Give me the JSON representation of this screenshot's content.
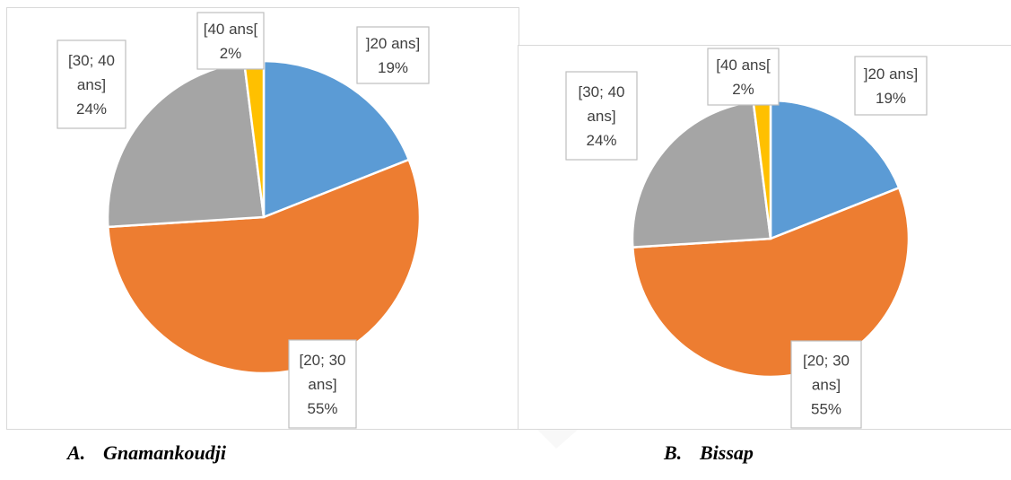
{
  "chart_data": [
    {
      "type": "pie",
      "caption_letter": "A.",
      "caption_name": "Gnamankoudji",
      "slices": [
        {
          "label_lines": [
            "]20 ans]",
            "19%"
          ],
          "value": 19,
          "color": "#5b9bd5"
        },
        {
          "label_lines": [
            "[20; 30",
            "ans]",
            "55%"
          ],
          "value": 55,
          "color": "#ed7d31"
        },
        {
          "label_lines": [
            "[30; 40",
            "ans]",
            "24%"
          ],
          "value": 24,
          "color": "#a5a5a5"
        },
        {
          "label_lines": [
            "[40 ans[",
            "2%"
          ],
          "value": 2,
          "color": "#ffc000"
        }
      ]
    },
    {
      "type": "pie",
      "caption_letter": "B.",
      "caption_name": "Bissap",
      "slices": [
        {
          "label_lines": [
            "]20 ans]",
            "19%"
          ],
          "value": 19,
          "color": "#5b9bd5"
        },
        {
          "label_lines": [
            "[20; 30",
            "ans]",
            "55%"
          ],
          "value": 55,
          "color": "#ed7d31"
        },
        {
          "label_lines": [
            "[30; 40",
            "ans]",
            "24%"
          ],
          "value": 24,
          "color": "#a5a5a5"
        },
        {
          "label_lines": [
            "[40 ans[",
            "2%"
          ],
          "value": 2,
          "color": "#ffc000"
        }
      ]
    }
  ]
}
